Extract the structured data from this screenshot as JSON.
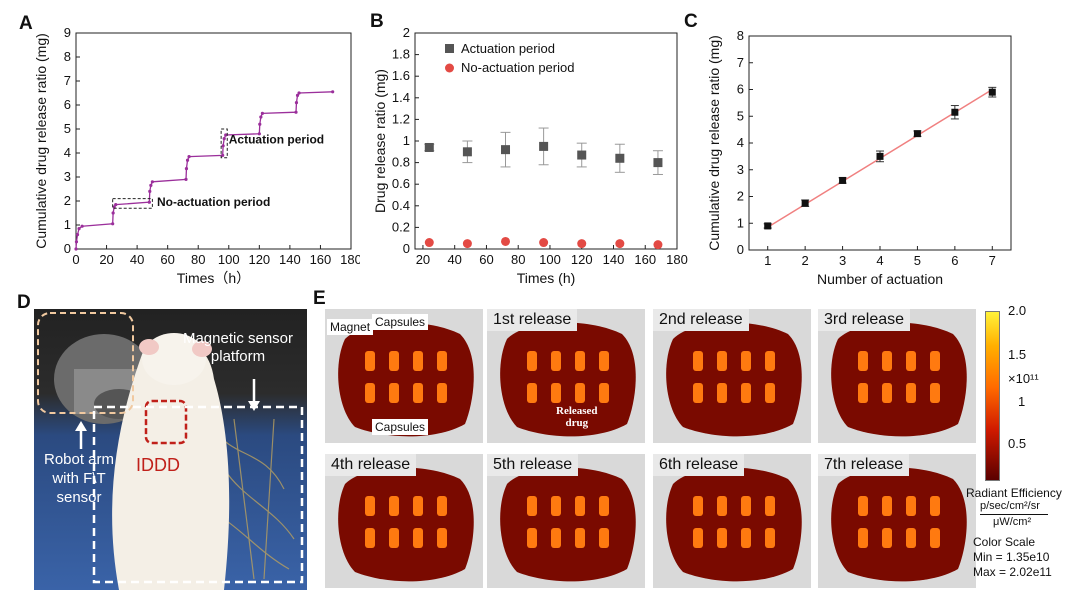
{
  "panels": {
    "a": "A",
    "b": "B",
    "c": "C",
    "d": "D",
    "e": "E"
  },
  "colors": {
    "line_a": "#9b2f9b",
    "actuation": "#555555",
    "no_actuation": "#e34a44",
    "fit_c": "#f08080",
    "heat_low": "#5a0000",
    "heat_high": "#ffe44a"
  },
  "chart_data": [
    {
      "type": "line",
      "title": "",
      "xlabel": "Times（h）",
      "ylabel": "Cumulative drug release ratio (mg)",
      "xlim": [
        0,
        180
      ],
      "ylim": [
        0,
        9
      ],
      "xticks": [
        "0",
        "20",
        "40",
        "60",
        "80",
        "100",
        "120",
        "140",
        "160",
        "180"
      ],
      "yticks": [
        "0",
        "1",
        "2",
        "3",
        "4",
        "5",
        "6",
        "7",
        "8",
        "9"
      ],
      "series": [
        {
          "x": [
            0,
            0.3,
            1,
            2,
            4,
            24,
            24.3,
            25,
            26,
            48,
            48.3,
            49,
            50,
            72,
            72.3,
            73,
            74,
            96,
            96.3,
            97,
            98,
            120,
            120.3,
            121,
            122,
            144,
            144.3,
            145,
            146,
            168
          ],
          "y": [
            0,
            0.3,
            0.6,
            0.85,
            0.95,
            1.05,
            1.5,
            1.75,
            1.85,
            1.95,
            2.4,
            2.65,
            2.8,
            2.9,
            3.35,
            3.7,
            3.85,
            3.9,
            4.3,
            4.6,
            4.75,
            4.8,
            5.2,
            5.5,
            5.65,
            5.7,
            6.1,
            6.4,
            6.5,
            6.55
          ]
        }
      ],
      "annotations": [
        "Actuation period",
        "No-actuation period"
      ]
    },
    {
      "type": "scatter",
      "title": "",
      "xlabel": "Times (h)",
      "ylabel": "Drug release ratio (mg)",
      "xlim": [
        0,
        180
      ],
      "ylim": [
        0,
        2
      ],
      "xticks": [
        "20",
        "40",
        "60",
        "80",
        "100",
        "120",
        "140",
        "160",
        "180"
      ],
      "yticks": [
        "0",
        "0.2",
        "0.4",
        "0.6",
        "0.8",
        "1",
        "1.2",
        "1.4",
        "1.6",
        "1.8",
        "2"
      ],
      "series": [
        {
          "name": "Actuation period",
          "x": [
            24,
            48,
            72,
            96,
            120,
            144,
            168
          ],
          "y": [
            0.94,
            0.9,
            0.92,
            0.95,
            0.87,
            0.84,
            0.8
          ],
          "err": [
            0.03,
            0.1,
            0.16,
            0.17,
            0.11,
            0.13,
            0.11
          ]
        },
        {
          "name": "No-actuation period",
          "x": [
            24,
            48,
            72,
            96,
            120,
            144,
            168
          ],
          "y": [
            0.06,
            0.05,
            0.07,
            0.06,
            0.05,
            0.05,
            0.04
          ],
          "err": [
            0,
            0,
            0,
            0,
            0,
            0,
            0
          ]
        }
      ],
      "legend": "top-left"
    },
    {
      "type": "scatter",
      "title": "",
      "xlabel": "Number of actuation",
      "ylabel": "Cumulative drug release ratio (mg)",
      "xlim": [
        0.5,
        7.5
      ],
      "ylim": [
        0,
        8
      ],
      "xticks": [
        "1",
        "2",
        "3",
        "4",
        "5",
        "6",
        "7"
      ],
      "yticks": [
        "0",
        "1",
        "2",
        "3",
        "4",
        "5",
        "6",
        "7",
        "8"
      ],
      "series": [
        {
          "x": [
            1,
            2,
            3,
            4,
            5,
            6,
            7
          ],
          "y": [
            0.9,
            1.75,
            2.6,
            3.5,
            4.35,
            5.15,
            5.9
          ],
          "err": [
            0.08,
            0.12,
            0.1,
            0.2,
            0.1,
            0.25,
            0.18
          ]
        }
      ],
      "fit": {
        "x": [
          1,
          7
        ],
        "y": [
          0.85,
          6.0
        ]
      }
    }
  ],
  "panel_d": {
    "label_platform": "Magnetic sensor\nplatform",
    "label_robot": "Robot arm\nwith F\\T\nsensor",
    "label_iddd": "IDDD"
  },
  "panel_e": {
    "first_labels": {
      "magnet": "Magnet",
      "capsules_top": "Capsules",
      "capsules_bottom": "Capsules"
    },
    "released_drug": "Released\ndrug",
    "releases": [
      "1st release",
      "2nd release",
      "3rd release",
      "4th release",
      "5th release",
      "6th release",
      "7th release"
    ],
    "colorbar": {
      "ticks": [
        "2.0",
        "1.5",
        "1",
        "0.5"
      ],
      "multiplier": "×10¹¹",
      "title": "Radiant Efficiency",
      "unit_num": "p/sec/cm²/sr",
      "unit_den": "μW/cm²",
      "scale_label": "Color Scale",
      "min": "Min = 1.35e10",
      "max": "Max = 2.02e11"
    }
  }
}
